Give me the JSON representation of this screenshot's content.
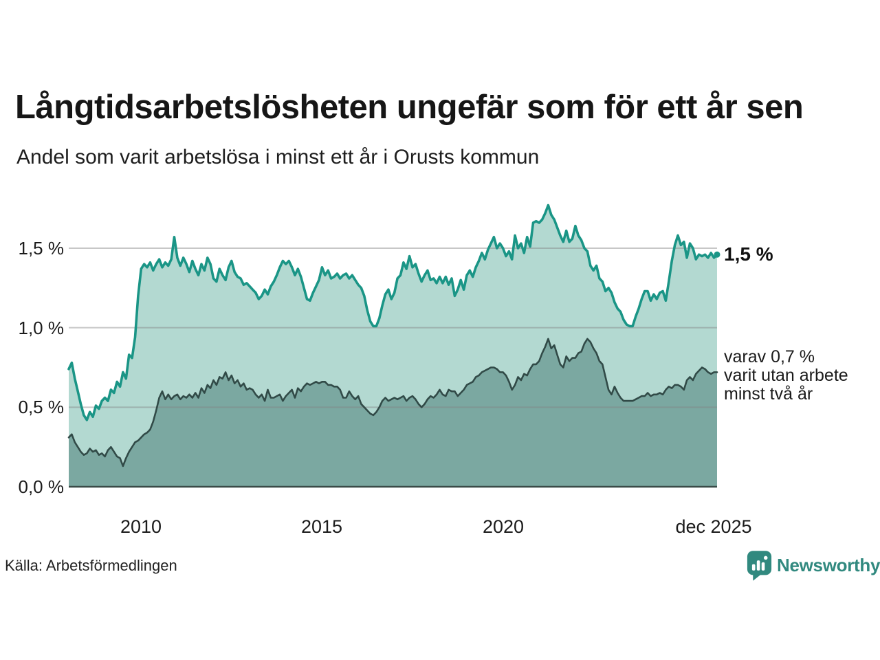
{
  "header": {
    "title": "Långtidsarbetslösheten ungefär som för ett år sen",
    "subtitle": "Andel som varit arbetslösa i minst ett år i Orusts kommun"
  },
  "chart": {
    "y_ticks": [
      "1,5 %",
      "1,0 %",
      "0,5 %",
      "0,0 %"
    ],
    "x_ticks": [
      "2010",
      "2015",
      "2020",
      "dec 2025"
    ],
    "end_label_primary": "1,5 %",
    "end_label_secondary": "varav 0,7 %\nvarit utan arbete\nminst två år"
  },
  "footer": {
    "source": "Källa: Arbetsförmedlingen",
    "logo_text": "Newsworthy"
  },
  "colors": {
    "teal_line": "#1a9586",
    "light_fill": "#b3d9d1",
    "dark_fill": "#7ba8a1",
    "dark_line": "#314a47",
    "gridline": "rgba(130,130,130,0.45)",
    "baseline": "#3a4b48",
    "logo_teal": "#31897f"
  },
  "chart_data": {
    "type": "area",
    "title": "Långtidsarbetslösheten ungefär som för ett år sen",
    "subtitle": "Andel som varit arbetslösa i minst ett år i Orusts kommun",
    "unit": "%",
    "frequency": "monthly",
    "x_start": "2008-01",
    "x_end": "2025-12",
    "ylim": [
      0,
      1.8
    ],
    "yticks": [
      0,
      0.5,
      1.0,
      1.5
    ],
    "ytick_labels": [
      "0,0 %",
      "0,5 %",
      "1,0 %",
      "1,5 %"
    ],
    "xtick_month_index": [
      24,
      84,
      144,
      215
    ],
    "xtick_labels": [
      "2010",
      "2015",
      "2020",
      "dec 2025"
    ],
    "grid": true,
    "legend_position": "right-annotations",
    "annotations": [
      {
        "text": "1,5 %",
        "series": "minst ett år",
        "at": "2025-12",
        "value": 1.5
      },
      {
        "text": "varav 0,7 % varit utan arbete minst två år",
        "series": "minst två år",
        "at": "2025-12",
        "value": 0.7
      }
    ],
    "series": [
      {
        "name": "Andel arbetslösa minst ett år",
        "values": [
          0.74,
          0.78,
          0.68,
          0.6,
          0.52,
          0.45,
          0.42,
          0.47,
          0.44,
          0.51,
          0.49,
          0.54,
          0.56,
          0.54,
          0.61,
          0.59,
          0.66,
          0.63,
          0.72,
          0.68,
          0.83,
          0.81,
          0.94,
          1.2,
          1.37,
          1.4,
          1.38,
          1.41,
          1.36,
          1.4,
          1.43,
          1.38,
          1.41,
          1.39,
          1.43,
          1.57,
          1.44,
          1.39,
          1.44,
          1.4,
          1.35,
          1.42,
          1.37,
          1.33,
          1.4,
          1.36,
          1.44,
          1.4,
          1.31,
          1.29,
          1.37,
          1.33,
          1.3,
          1.38,
          1.42,
          1.35,
          1.32,
          1.31,
          1.27,
          1.28,
          1.26,
          1.24,
          1.22,
          1.18,
          1.2,
          1.24,
          1.21,
          1.26,
          1.29,
          1.33,
          1.38,
          1.42,
          1.4,
          1.42,
          1.38,
          1.33,
          1.37,
          1.32,
          1.25,
          1.18,
          1.17,
          1.22,
          1.26,
          1.3,
          1.38,
          1.33,
          1.36,
          1.31,
          1.32,
          1.34,
          1.31,
          1.33,
          1.34,
          1.31,
          1.33,
          1.3,
          1.27,
          1.25,
          1.2,
          1.11,
          1.04,
          1.01,
          1.01,
          1.06,
          1.14,
          1.21,
          1.24,
          1.18,
          1.22,
          1.31,
          1.33,
          1.41,
          1.37,
          1.45,
          1.38,
          1.4,
          1.34,
          1.29,
          1.33,
          1.36,
          1.3,
          1.31,
          1.28,
          1.32,
          1.28,
          1.32,
          1.27,
          1.31,
          1.2,
          1.24,
          1.3,
          1.24,
          1.33,
          1.36,
          1.32,
          1.38,
          1.42,
          1.47,
          1.43,
          1.49,
          1.53,
          1.57,
          1.5,
          1.53,
          1.5,
          1.45,
          1.48,
          1.43,
          1.58,
          1.5,
          1.53,
          1.47,
          1.57,
          1.51,
          1.66,
          1.67,
          1.66,
          1.68,
          1.72,
          1.77,
          1.71,
          1.68,
          1.63,
          1.58,
          1.54,
          1.61,
          1.54,
          1.56,
          1.64,
          1.58,
          1.55,
          1.5,
          1.48,
          1.39,
          1.36,
          1.39,
          1.31,
          1.29,
          1.23,
          1.25,
          1.22,
          1.16,
          1.12,
          1.1,
          1.05,
          1.02,
          1.01,
          1.01,
          1.07,
          1.12,
          1.18,
          1.23,
          1.23,
          1.17,
          1.21,
          1.18,
          1.22,
          1.23,
          1.17,
          1.29,
          1.42,
          1.52,
          1.58,
          1.52,
          1.54,
          1.44,
          1.53,
          1.5,
          1.43,
          1.46,
          1.45,
          1.46,
          1.44,
          1.47,
          1.44,
          1.46
        ]
      },
      {
        "name": "varav utan arbete minst två år",
        "values": [
          0.31,
          0.33,
          0.28,
          0.25,
          0.22,
          0.2,
          0.21,
          0.24,
          0.22,
          0.23,
          0.2,
          0.21,
          0.19,
          0.23,
          0.25,
          0.22,
          0.19,
          0.18,
          0.13,
          0.18,
          0.22,
          0.25,
          0.28,
          0.29,
          0.31,
          0.33,
          0.34,
          0.36,
          0.41,
          0.48,
          0.56,
          0.6,
          0.55,
          0.58,
          0.55,
          0.57,
          0.58,
          0.55,
          0.57,
          0.56,
          0.58,
          0.56,
          0.59,
          0.56,
          0.62,
          0.59,
          0.64,
          0.62,
          0.67,
          0.64,
          0.69,
          0.68,
          0.72,
          0.67,
          0.7,
          0.65,
          0.67,
          0.63,
          0.65,
          0.61,
          0.62,
          0.61,
          0.58,
          0.56,
          0.58,
          0.54,
          0.61,
          0.56,
          0.56,
          0.57,
          0.58,
          0.54,
          0.57,
          0.59,
          0.61,
          0.56,
          0.62,
          0.6,
          0.63,
          0.65,
          0.64,
          0.65,
          0.66,
          0.65,
          0.66,
          0.66,
          0.64,
          0.64,
          0.63,
          0.63,
          0.61,
          0.56,
          0.56,
          0.6,
          0.57,
          0.55,
          0.57,
          0.52,
          0.5,
          0.48,
          0.46,
          0.45,
          0.47,
          0.5,
          0.54,
          0.56,
          0.54,
          0.55,
          0.56,
          0.55,
          0.56,
          0.57,
          0.54,
          0.56,
          0.57,
          0.55,
          0.52,
          0.5,
          0.52,
          0.55,
          0.57,
          0.56,
          0.58,
          0.61,
          0.58,
          0.57,
          0.61,
          0.6,
          0.6,
          0.57,
          0.59,
          0.61,
          0.64,
          0.65,
          0.66,
          0.69,
          0.7,
          0.72,
          0.73,
          0.74,
          0.75,
          0.75,
          0.74,
          0.72,
          0.72,
          0.7,
          0.66,
          0.61,
          0.64,
          0.69,
          0.67,
          0.71,
          0.7,
          0.74,
          0.77,
          0.77,
          0.79,
          0.84,
          0.88,
          0.93,
          0.87,
          0.89,
          0.83,
          0.77,
          0.75,
          0.82,
          0.79,
          0.81,
          0.81,
          0.84,
          0.85,
          0.9,
          0.93,
          0.91,
          0.87,
          0.84,
          0.79,
          0.77,
          0.69,
          0.61,
          0.58,
          0.63,
          0.59,
          0.56,
          0.54,
          0.54,
          0.54,
          0.54,
          0.55,
          0.56,
          0.57,
          0.57,
          0.59,
          0.57,
          0.58,
          0.58,
          0.59,
          0.58,
          0.61,
          0.63,
          0.62,
          0.64,
          0.64,
          0.63,
          0.61,
          0.67,
          0.69,
          0.67,
          0.71,
          0.73,
          0.75,
          0.74,
          0.72,
          0.71,
          0.72,
          0.72
        ]
      }
    ]
  }
}
